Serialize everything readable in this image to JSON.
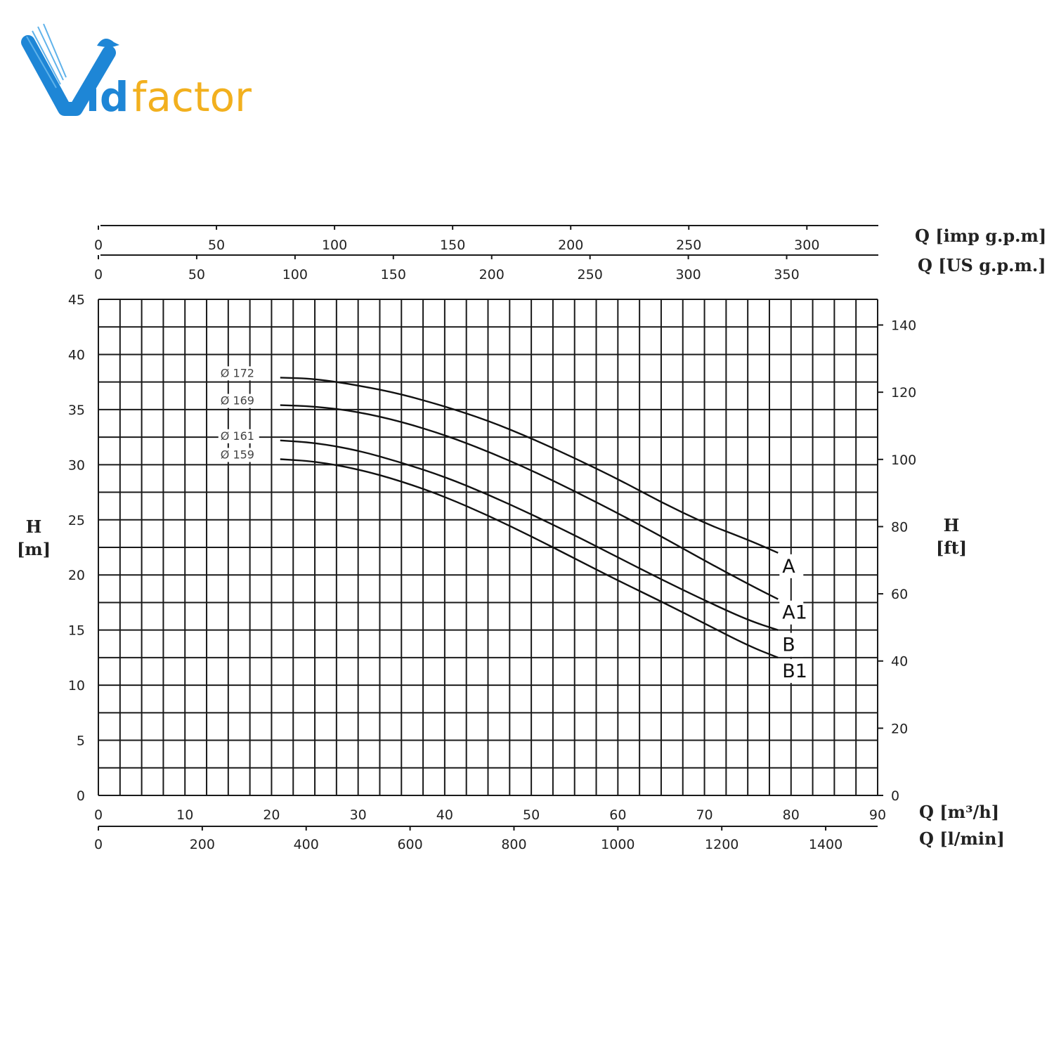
{
  "brand": {
    "logo_text_prefix": "id",
    "logo_text_suffix": "factor",
    "logo_text": "Vidfactor"
  },
  "colors": {
    "logo_blue": "#1e86d6",
    "logo_yellow": "#f2b01e",
    "grid": "#1a1a1a",
    "curve": "#111111",
    "highlight": "#e02020"
  },
  "chart_data": {
    "type": "line",
    "title": "",
    "xlabel": "Q [m³/h]",
    "ylabel": "H [m]",
    "xlim": [
      0,
      90
    ],
    "ylim": [
      0,
      45
    ],
    "grid": true,
    "axes": {
      "left": {
        "label_line1": "H",
        "label_line2": "[m]",
        "ticks": [
          0,
          5,
          10,
          15,
          20,
          25,
          30,
          35,
          40,
          45
        ]
      },
      "right": {
        "label_line1": "H",
        "label_line2": "[ft]",
        "ticks": [
          0,
          20,
          40,
          60,
          80,
          100,
          120,
          140
        ],
        "conversion": 3.28084
      },
      "bottom_primary": {
        "label": "Q [m³/h]",
        "ticks": [
          0,
          10,
          20,
          30,
          40,
          50,
          60,
          70,
          80,
          90
        ]
      },
      "bottom_secondary": {
        "label": "Q [l/min]",
        "ticks": [
          0,
          200,
          400,
          600,
          800,
          1000,
          1200,
          1400
        ],
        "conversion": 16.6667
      },
      "top_upper": {
        "label": "Q [imp g.p.m]",
        "ticks": [
          0,
          50,
          100,
          150,
          200,
          250,
          300
        ],
        "conversion": 3.6662
      },
      "top_lower": {
        "label": "Q [US g.p.m.]",
        "ticks": [
          0,
          50,
          100,
          150,
          200,
          250,
          300,
          350
        ],
        "conversion": 4.4029
      }
    },
    "series": [
      {
        "diameter_label": "Ø 172",
        "end_label": "A",
        "highlight": false,
        "x": [
          21,
          25,
          30,
          35,
          40,
          45,
          50,
          55,
          60,
          65,
          70,
          75,
          78.5
        ],
        "y": [
          37.9,
          37.8,
          37.2,
          36.4,
          35.3,
          34.0,
          32.4,
          30.6,
          28.7,
          26.6,
          24.7,
          23.2,
          22.0
        ]
      },
      {
        "diameter_label": "Ø 169",
        "end_label": "A1",
        "highlight": false,
        "x": [
          21,
          25,
          30,
          35,
          40,
          45,
          50,
          55,
          60,
          65,
          70,
          75,
          78.5
        ],
        "y": [
          35.4,
          35.3,
          34.8,
          33.9,
          32.7,
          31.2,
          29.5,
          27.6,
          25.6,
          23.5,
          21.3,
          19.2,
          17.8
        ]
      },
      {
        "diameter_label": "Ø 161",
        "end_label": "B",
        "highlight": true,
        "x": [
          21,
          25,
          30,
          35,
          40,
          45,
          50,
          55,
          60,
          65,
          70,
          75,
          78.5
        ],
        "y": [
          32.2,
          32.0,
          31.3,
          30.2,
          28.9,
          27.3,
          25.5,
          23.6,
          21.6,
          19.6,
          17.7,
          15.9,
          15.0
        ]
      },
      {
        "diameter_label": "Ø 159",
        "end_label": "B1",
        "highlight": false,
        "x": [
          21,
          25,
          30,
          35,
          40,
          45,
          50,
          55,
          60,
          65,
          70,
          75,
          78.5
        ],
        "y": [
          30.5,
          30.3,
          29.6,
          28.5,
          27.1,
          25.4,
          23.5,
          21.5,
          19.5,
          17.6,
          15.6,
          13.6,
          12.5
        ]
      }
    ]
  }
}
